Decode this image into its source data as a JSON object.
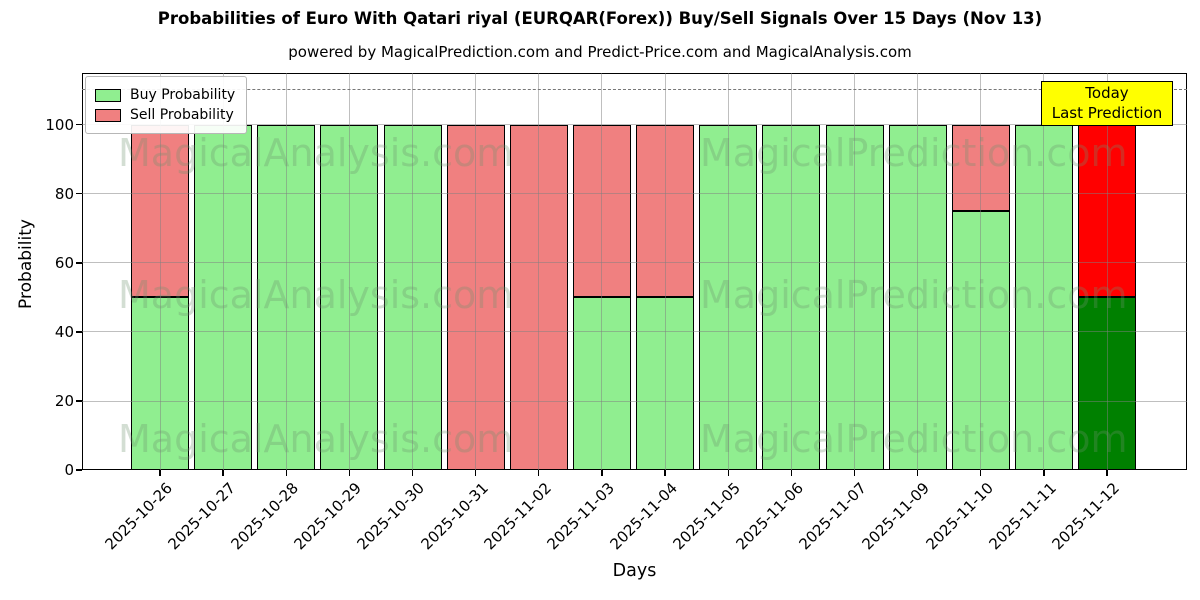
{
  "header": {
    "title": "Probabilities of Euro With Qatari riyal (EURQAR(Forex)) Buy/Sell Signals Over 15 Days (Nov 13)",
    "subtitle": "powered by MagicalPrediction.com and Predict-Price.com and MagicalAnalysis.com"
  },
  "legend": {
    "items": [
      {
        "label": "Buy Probability",
        "color": "#90ee90"
      },
      {
        "label": "Sell Probability",
        "color": "#f08080"
      }
    ]
  },
  "annotation": {
    "line1": "Today",
    "line2": "Last Prediction",
    "bg": "#ffff00"
  },
  "axes": {
    "xlabel": "Days",
    "ylabel": "Probability",
    "yticks": [
      0,
      20,
      40,
      60,
      80,
      100
    ]
  },
  "watermarks": {
    "left": "MagicalAnalysis.com",
    "right": "MagicalPrediction.com"
  },
  "colors": {
    "buy": "#90ee90",
    "sell": "#f08080",
    "today_buy": "#008000",
    "today_sell": "#ff0000",
    "bar_edge": "#000000",
    "grid": "#808080",
    "dashed_line": "#777777",
    "annotation_bg": "#ffff00"
  },
  "chart_data": {
    "type": "bar",
    "stacked": true,
    "title": "Probabilities of Euro With Qatari riyal (EURQAR(Forex)) Buy/Sell Signals Over 15 Days (Nov 13)",
    "xlabel": "Days",
    "ylabel": "Probability",
    "ylim": [
      0,
      115
    ],
    "dashed_line_y": 110,
    "grid": true,
    "legend_position": "upper left",
    "categories": [
      "2025-10-26",
      "2025-10-27",
      "2025-10-28",
      "2025-10-29",
      "2025-10-30",
      "2025-10-31",
      "2025-11-02",
      "2025-11-03",
      "2025-11-04",
      "2025-11-05",
      "2025-11-06",
      "2025-11-07",
      "2025-11-09",
      "2025-11-10",
      "2025-11-11",
      "2025-11-12"
    ],
    "series": [
      {
        "name": "Buy Probability",
        "values": [
          50,
          100,
          100,
          100,
          100,
          0,
          0,
          50,
          50,
          100,
          100,
          100,
          100,
          75,
          100,
          50
        ]
      },
      {
        "name": "Sell Probability",
        "values": [
          50,
          0,
          0,
          0,
          0,
          100,
          100,
          50,
          50,
          0,
          0,
          0,
          0,
          25,
          0,
          50
        ]
      }
    ],
    "today_index": 15,
    "today_label": "Today Last Prediction"
  }
}
